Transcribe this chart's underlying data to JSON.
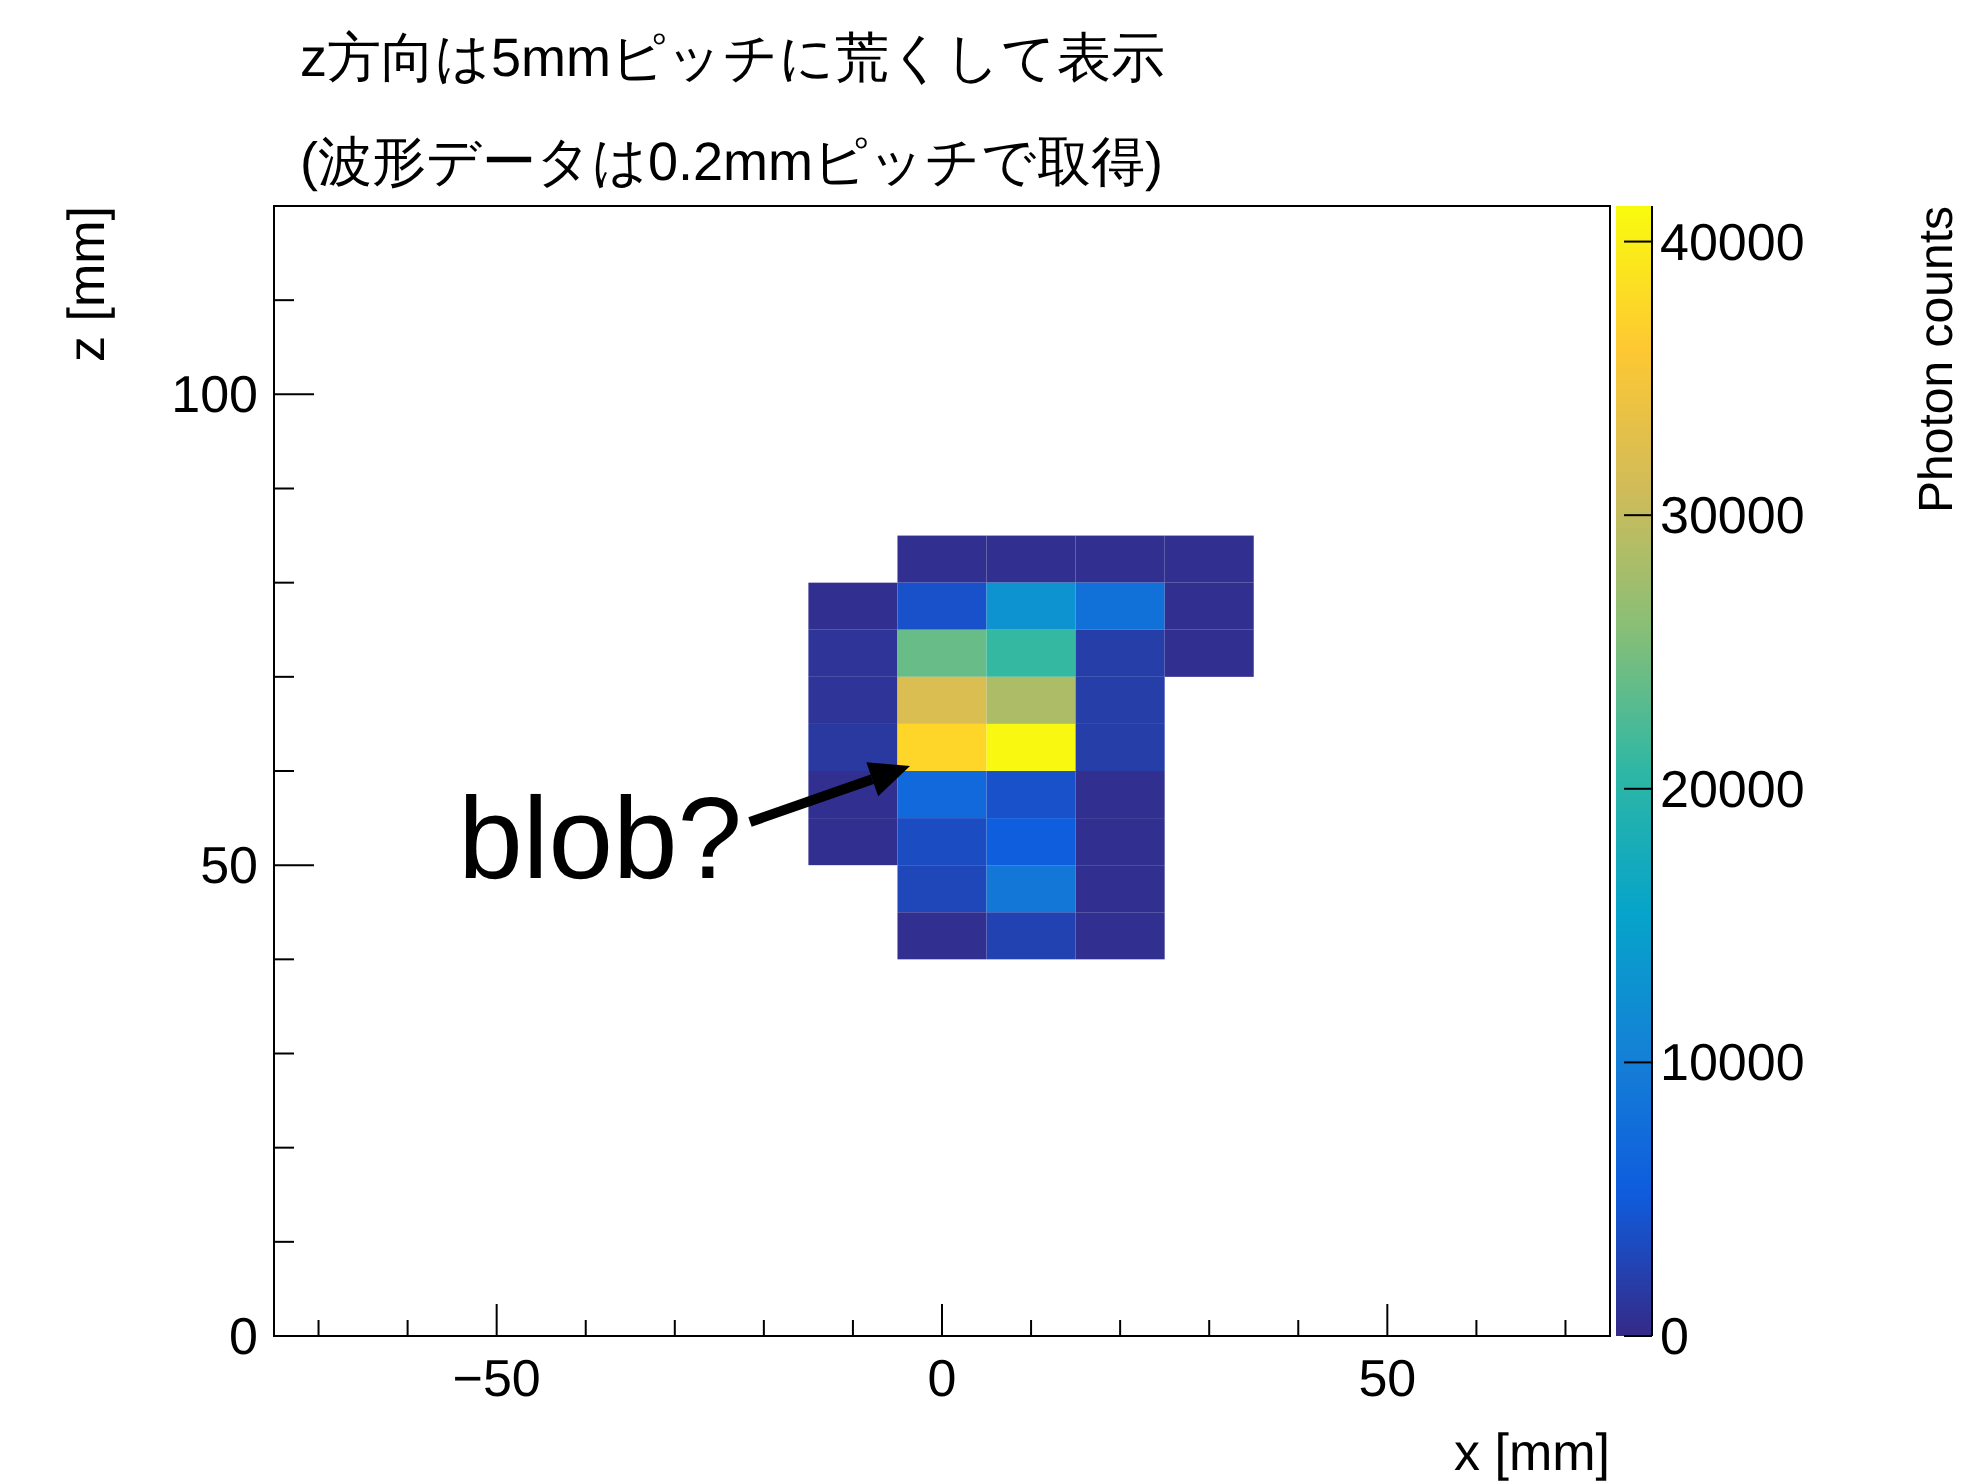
{
  "chart_data": {
    "type": "heatmap",
    "title": "z方向は5mmピッチに荒くして表示",
    "subtitle": "(波形データは0.2mmピッチで取得)",
    "xlabel": "x [mm]",
    "ylabel": "z [mm]",
    "clabel": "Photon counts",
    "x": [
      -10,
      0,
      10,
      20,
      30
    ],
    "y": [
      82.5,
      77.5,
      72.5,
      67.5,
      62.5,
      57.5,
      52.5,
      47.5,
      42.5
    ],
    "cells": [
      [
        null,
        500,
        500,
        500,
        500
      ],
      [
        500,
        4000,
        13000,
        8000,
        500
      ],
      [
        1000,
        24000,
        21000,
        2000,
        500
      ],
      [
        1000,
        32000,
        28500,
        2000,
        null
      ],
      [
        1500,
        37500,
        41000,
        2000,
        null
      ],
      [
        500,
        7000,
        4000,
        500,
        null
      ],
      [
        500,
        3500,
        5500,
        500,
        null
      ],
      [
        null,
        3000,
        9000,
        500,
        null
      ],
      [
        null,
        500,
        2500,
        500,
        null
      ]
    ],
    "xlim": [
      -75,
      75
    ],
    "xticks": [
      {
        "value": -70,
        "label": null
      },
      {
        "value": -60,
        "label": null
      },
      {
        "value": -50,
        "label": "−50"
      },
      {
        "value": -40,
        "label": null
      },
      {
        "value": -30,
        "label": null
      },
      {
        "value": -20,
        "label": null
      },
      {
        "value": -10,
        "label": null
      },
      0,
      {
        "value": 10,
        "label": null
      },
      {
        "value": 20,
        "label": null
      },
      {
        "value": 30,
        "label": null
      },
      {
        "value": 40,
        "label": null
      },
      50,
      {
        "value": 60,
        "label": null
      },
      {
        "value": 70,
        "label": null
      }
    ],
    "ylim": [
      0,
      120
    ],
    "yticks": [
      0,
      {
        "value": 10,
        "label": null
      },
      {
        "value": 20,
        "label": null
      },
      {
        "value": 30,
        "label": null
      },
      {
        "value": 40,
        "label": null
      },
      50,
      {
        "value": 60,
        "label": null
      },
      {
        "value": 70,
        "label": null
      },
      {
        "value": 80,
        "label": null
      },
      {
        "value": 90,
        "label": null
      },
      100,
      {
        "value": 110,
        "label": null
      }
    ],
    "clim": [
      0,
      41300
    ],
    "cticks": [
      0,
      10000,
      20000,
      30000,
      40000
    ],
    "annotations": [
      "blob?"
    ]
  }
}
